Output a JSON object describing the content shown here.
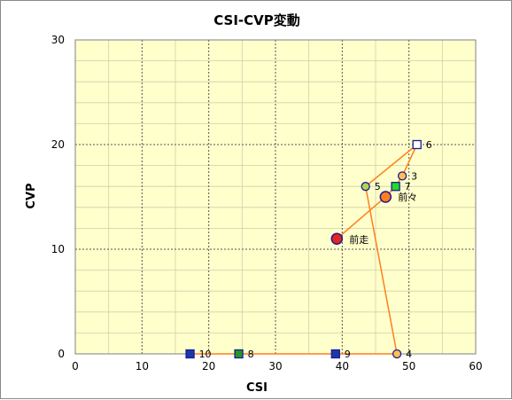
{
  "chart_data": {
    "type": "scatter",
    "title": "CSI-CVP変動",
    "xlabel": "CSI",
    "ylabel": "CVP",
    "xlim": [
      0,
      60
    ],
    "ylim": [
      0,
      30
    ],
    "xticks": [
      "0",
      "10",
      "20",
      "30",
      "40",
      "50",
      "60"
    ],
    "yticks": [
      "0",
      "10",
      "20",
      "30"
    ],
    "grid": true,
    "plot_background": "#ffffcc",
    "line_color": "#ff7f1e",
    "path_order": [
      "10",
      "8",
      "9",
      "4",
      "5",
      "6",
      "3",
      "7",
      "前々",
      "前走"
    ],
    "points": [
      {
        "label": "前走",
        "x": 39.2,
        "y": 11.0,
        "marker": "circle-large",
        "fill": "#e8231e",
        "stroke": "#1a1a9c"
      },
      {
        "label": "前々",
        "x": 46.5,
        "y": 15.0,
        "marker": "circle-large",
        "fill": "#ff7f1e",
        "stroke": "#1a1a9c"
      },
      {
        "label": "3",
        "x": 49.0,
        "y": 17.0,
        "marker": "circle",
        "fill": "#ffc04d",
        "stroke": "#1a1a9c"
      },
      {
        "label": "4",
        "x": 48.2,
        "y": 0.0,
        "marker": "circle",
        "fill": "#ffc04d",
        "stroke": "#1a1a9c"
      },
      {
        "label": "5",
        "x": 43.5,
        "y": 16.0,
        "marker": "circle",
        "fill": "#b0d84a",
        "stroke": "#1a1a9c"
      },
      {
        "label": "6",
        "x": 51.2,
        "y": 20.0,
        "marker": "square",
        "fill": "#ffffff",
        "stroke": "#1a1a9c"
      },
      {
        "label": "7",
        "x": 48.0,
        "y": 16.0,
        "marker": "square",
        "fill": "#22dd22",
        "stroke": "#1a1a9c"
      },
      {
        "label": "8",
        "x": 24.5,
        "y": 0.0,
        "marker": "square",
        "fill": "#229922",
        "stroke": "#1a1a9c"
      },
      {
        "label": "9",
        "x": 39.0,
        "y": 0.0,
        "marker": "square",
        "fill": "#1a3aa8",
        "stroke": "#1a1a9c"
      },
      {
        "label": "10",
        "x": 17.2,
        "y": 0.0,
        "marker": "square",
        "fill": "#1a3aa8",
        "stroke": "#1a1a9c"
      }
    ]
  }
}
